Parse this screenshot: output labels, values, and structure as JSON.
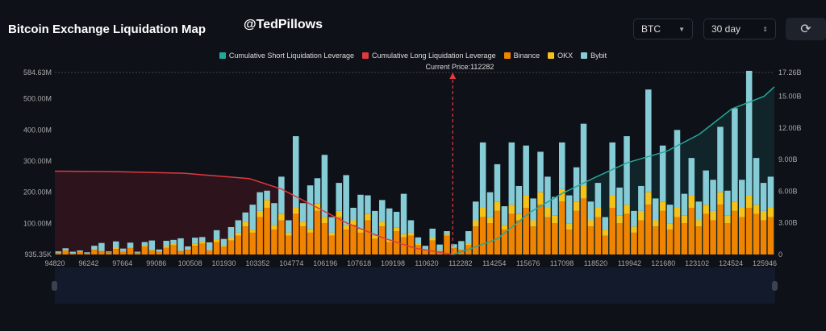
{
  "header": {
    "title": "Bitcoin Exchange Liquidation Map",
    "handle": "@TedPillows",
    "coin_select": "BTC",
    "period_select": "30 day",
    "refresh_icon": "refresh-icon"
  },
  "colors": {
    "short": "#26a69a",
    "long": "#e0393e",
    "binance": "#f08400",
    "okx": "#f5c21a",
    "bybit": "#86ccd6"
  },
  "chart_data": {
    "type": "bar",
    "title": "Bitcoin Exchange Liquidation Map",
    "current_price_label": "Current Price:112282",
    "current_price": 112282,
    "legend": [
      "Cumulative Short Liquidation Leverage",
      "Cumulative Long Liquidation Leverage",
      "Binance",
      "OKX",
      "Bybit"
    ],
    "legend_placement": "top-center",
    "x_ticks": [
      "94820",
      "96242",
      "97664",
      "99086",
      "100508",
      "101930",
      "103352",
      "104774",
      "106196",
      "107618",
      "109198",
      "110620",
      "112282",
      "114254",
      "115676",
      "117098",
      "118520",
      "119942",
      "121680",
      "123102",
      "124524",
      "125946"
    ],
    "y_left_ticks": [
      "584.63M",
      "500.00M",
      "400.00M",
      "300.00M",
      "200.00M",
      "100.00M",
      "935.35K"
    ],
    "y_left_range_M": [
      0,
      584.63
    ],
    "y_right_ticks": [
      "17.26B",
      "15.00B",
      "12.00B",
      "9.00B",
      "6.00B",
      "3.00B",
      "0"
    ],
    "y_right_range_B": [
      0,
      17.26
    ],
    "x_range": [
      94820,
      126400
    ],
    "bars_note": "per bar: [Binance, OKX, Bybit] in millions",
    "bars": [
      [
        5,
        1,
        4
      ],
      [
        12,
        2,
        6
      ],
      [
        3,
        1,
        5
      ],
      [
        8,
        2,
        3
      ],
      [
        4,
        1,
        2
      ],
      [
        15,
        3,
        10
      ],
      [
        10,
        2,
        25
      ],
      [
        6,
        1,
        3
      ],
      [
        18,
        4,
        20
      ],
      [
        9,
        2,
        8
      ],
      [
        20,
        3,
        15
      ],
      [
        5,
        1,
        3
      ],
      [
        25,
        5,
        10
      ],
      [
        12,
        3,
        30
      ],
      [
        8,
        2,
        6
      ],
      [
        22,
        4,
        18
      ],
      [
        30,
        5,
        12
      ],
      [
        10,
        2,
        40
      ],
      [
        15,
        3,
        8
      ],
      [
        28,
        6,
        20
      ],
      [
        35,
        6,
        15
      ],
      [
        12,
        2,
        25
      ],
      [
        40,
        8,
        30
      ],
      [
        25,
        5,
        20
      ],
      [
        45,
        8,
        35
      ],
      [
        60,
        10,
        40
      ],
      [
        90,
        15,
        30
      ],
      [
        70,
        10,
        80
      ],
      [
        120,
        20,
        60
      ],
      [
        150,
        25,
        30
      ],
      [
        80,
        15,
        70
      ],
      [
        110,
        20,
        120
      ],
      [
        60,
        10,
        40
      ],
      [
        130,
        20,
        230
      ],
      [
        90,
        15,
        60
      ],
      [
        70,
        12,
        140
      ],
      [
        140,
        25,
        80
      ],
      [
        100,
        20,
        200
      ],
      [
        60,
        10,
        50
      ],
      [
        120,
        20,
        90
      ],
      [
        80,
        15,
        160
      ],
      [
        95,
        15,
        40
      ],
      [
        70,
        12,
        110
      ],
      [
        110,
        20,
        60
      ],
      [
        50,
        10,
        80
      ],
      [
        90,
        15,
        70
      ],
      [
        40,
        8,
        100
      ],
      [
        75,
        12,
        50
      ],
      [
        55,
        10,
        130
      ],
      [
        60,
        10,
        40
      ],
      [
        30,
        5,
        20
      ],
      [
        15,
        3,
        10
      ],
      [
        45,
        8,
        30
      ],
      [
        10,
        2,
        20
      ],
      [
        60,
        5,
        10
      ],
      [
        20,
        3,
        10
      ],
      [
        15,
        3,
        25
      ],
      [
        30,
        5,
        40
      ],
      [
        90,
        20,
        60
      ],
      [
        120,
        30,
        210
      ],
      [
        100,
        20,
        80
      ],
      [
        140,
        30,
        120
      ],
      [
        80,
        15,
        60
      ],
      [
        130,
        30,
        200
      ],
      [
        110,
        20,
        90
      ],
      [
        150,
        40,
        160
      ],
      [
        90,
        20,
        70
      ],
      [
        160,
        40,
        130
      ],
      [
        120,
        30,
        100
      ],
      [
        100,
        25,
        60
      ],
      [
        170,
        40,
        150
      ],
      [
        80,
        20,
        90
      ],
      [
        140,
        30,
        110
      ],
      [
        180,
        40,
        200
      ],
      [
        90,
        20,
        60
      ],
      [
        120,
        30,
        80
      ],
      [
        60,
        20,
        40
      ],
      [
        150,
        40,
        170
      ],
      [
        100,
        25,
        90
      ],
      [
        130,
        30,
        220
      ],
      [
        70,
        20,
        50
      ],
      [
        110,
        30,
        80
      ],
      [
        160,
        40,
        330
      ],
      [
        90,
        20,
        70
      ],
      [
        140,
        30,
        180
      ],
      [
        80,
        20,
        60
      ],
      [
        120,
        30,
        250
      ],
      [
        100,
        25,
        70
      ],
      [
        150,
        40,
        120
      ],
      [
        90,
        20,
        60
      ],
      [
        130,
        30,
        110
      ],
      [
        110,
        30,
        100
      ],
      [
        160,
        40,
        210
      ],
      [
        100,
        25,
        80
      ],
      [
        140,
        30,
        300
      ],
      [
        120,
        30,
        90
      ],
      [
        150,
        40,
        400
      ],
      [
        130,
        30,
        150
      ],
      [
        110,
        30,
        90
      ],
      [
        120,
        30,
        100
      ]
    ],
    "long_cumulative_B": [
      [
        94820,
        7.9
      ],
      [
        97664,
        7.85
      ],
      [
        100508,
        7.7
      ],
      [
        103352,
        7.2
      ],
      [
        104774,
        6.2
      ],
      [
        106196,
        4.6
      ],
      [
        107618,
        3.0
      ],
      [
        109198,
        1.6
      ],
      [
        110620,
        0.6
      ],
      [
        112282,
        0
      ]
    ],
    "short_cumulative_B": [
      [
        112282,
        0
      ],
      [
        113000,
        0.5
      ],
      [
        114254,
        1.5
      ],
      [
        115676,
        4.0
      ],
      [
        117098,
        5.8
      ],
      [
        118520,
        7.3
      ],
      [
        119942,
        8.7
      ],
      [
        121680,
        9.8
      ],
      [
        123102,
        11.4
      ],
      [
        124524,
        13.8
      ],
      [
        125946,
        15.0
      ],
      [
        126400,
        15.9
      ]
    ]
  }
}
